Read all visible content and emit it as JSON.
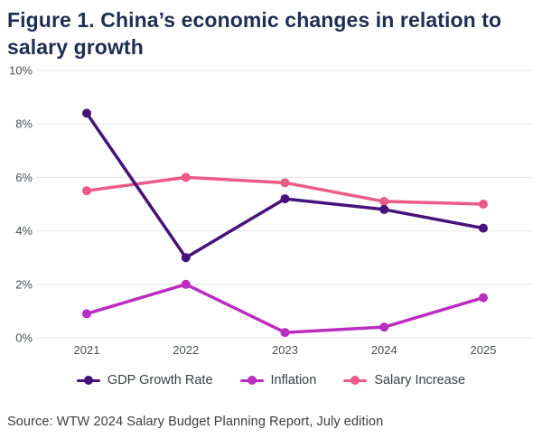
{
  "title": "Figure 1. China’s economic changes in relation to salary growth",
  "source": "Source: WTW 2024 Salary Budget Planning Report, July edition",
  "colors": {
    "title_navy": "#1e2e52",
    "gdp_purple": "#45137a",
    "inflation_magenta": "#bb2cc0",
    "salary_pink": "#ec5a87",
    "gridline": "#e6e6e6",
    "axis_label": "#4d4f55",
    "legend_label": "#3c4043",
    "source_text": "#3d3d3f",
    "background": "#ffffff"
  },
  "chart_data": {
    "type": "line",
    "x": [
      "2021",
      "2022",
      "2023",
      "2024",
      "2025"
    ],
    "series": [
      {
        "name": "GDP Growth Rate",
        "color": "#45137a",
        "values": [
          8.4,
          3.0,
          5.2,
          4.8,
          4.1
        ]
      },
      {
        "name": "Inflation",
        "color": "#bb2cc0",
        "values": [
          0.9,
          2.0,
          0.2,
          0.4,
          1.5
        ]
      },
      {
        "name": "Salary Increase",
        "color": "#ec5a87",
        "values": [
          5.5,
          6.0,
          5.8,
          5.1,
          5.0
        ]
      }
    ],
    "y_ticks": [
      0,
      2,
      4,
      6,
      8,
      10
    ],
    "y_tick_labels": [
      "0%",
      "2%",
      "4%",
      "6%",
      "8%",
      "10%"
    ],
    "ylim": [
      0,
      10
    ],
    "grid": true,
    "legend_position": "bottom",
    "title": "Figure 1. China’s economic changes in relation to salary growth",
    "xlabel": "",
    "ylabel": ""
  }
}
